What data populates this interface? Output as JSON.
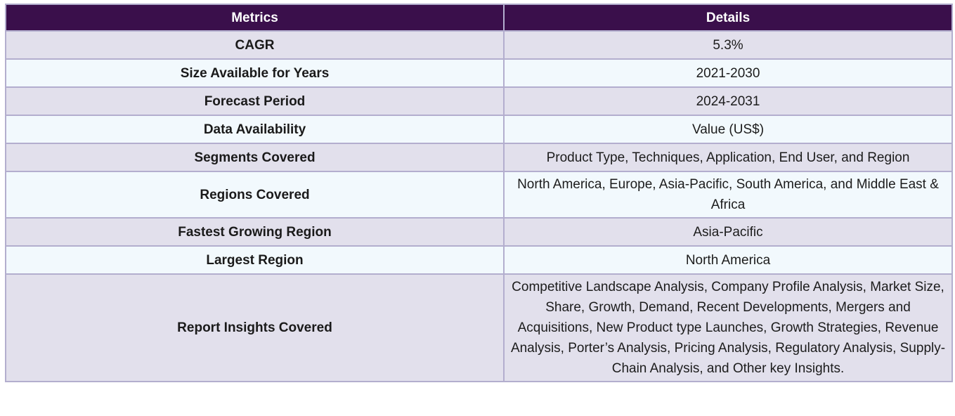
{
  "table": {
    "headers": [
      "Metrics",
      "Details"
    ],
    "rows": [
      {
        "metric": "CAGR",
        "detail": "5.3%"
      },
      {
        "metric": "Size Available for Years",
        "detail": "2021-2030"
      },
      {
        "metric": "Forecast Period",
        "detail": "2024-2031"
      },
      {
        "metric": "Data Availability",
        "detail": "Value (US$)"
      },
      {
        "metric": "Segments Covered",
        "detail": "Product Type, Techniques, Application, End User, and Region"
      },
      {
        "metric": "Regions Covered",
        "detail": "North America, Europe, Asia-Pacific, South America, and Middle East & Africa"
      },
      {
        "metric": "Fastest Growing Region",
        "detail": "Asia-Pacific"
      },
      {
        "metric": "Largest Region",
        "detail": "North America"
      },
      {
        "metric": "Report Insights Covered",
        "detail": "Competitive Landscape Analysis, Company Profile Analysis, Market Size, Share, Growth, Demand, Recent Developments, Mergers and Acquisitions, New Product type Launches, Growth Strategies, Revenue Analysis, Porter’s Analysis, Pricing Analysis, Regulatory Analysis, Supply-Chain Analysis, and Other key Insights."
      }
    ]
  },
  "colors": {
    "header_bg": "#3a0f4b",
    "row_shade": "#e2e0ec",
    "row_light": "#f2f9fd",
    "border": "#b3aece"
  }
}
